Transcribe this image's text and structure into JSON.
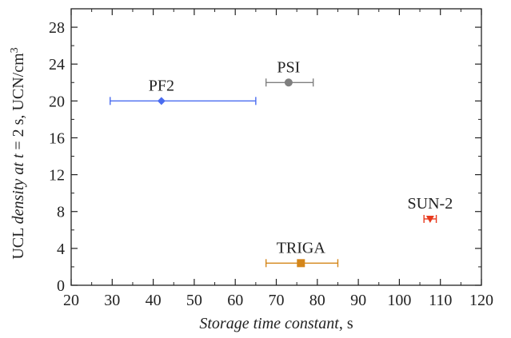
{
  "chart_data": {
    "type": "scatter",
    "x_axis": {
      "label_italic": "Storage time constant",
      "label_rest": ", s",
      "range": [
        20,
        120
      ],
      "ticks": [
        20,
        30,
        40,
        50,
        60,
        70,
        80,
        90,
        100,
        110,
        120
      ]
    },
    "y_axis": {
      "label_pre": "UCL ",
      "label_italic1": "density at t",
      "label_mid": " = 2 s, UCN/cm",
      "label_sup": "3",
      "range": [
        0,
        30
      ],
      "ticks": [
        0,
        4,
        8,
        12,
        16,
        20,
        24,
        28
      ]
    },
    "points": [
      {
        "label": "PF2",
        "x": 42,
        "y": 20,
        "xerr_low": 29.5,
        "xerr_high": 65,
        "color": "#4a6cf0",
        "marker": "diamond"
      },
      {
        "label": "PSI",
        "x": 73,
        "y": 22,
        "xerr_low": 67.5,
        "xerr_high": 79,
        "color": "#7f7f7f",
        "marker": "circle"
      },
      {
        "label": "SUN-2",
        "x": 107.5,
        "y": 7.2,
        "xerr_low": 106,
        "xerr_high": 109,
        "color": "#e8391d",
        "marker": "triangle-down"
      },
      {
        "label": "TRIGA",
        "x": 76,
        "y": 2.4,
        "xerr_low": 67.5,
        "xerr_high": 85,
        "color": "#d4861a",
        "marker": "square"
      }
    ],
    "grid": false,
    "legend": "none"
  }
}
